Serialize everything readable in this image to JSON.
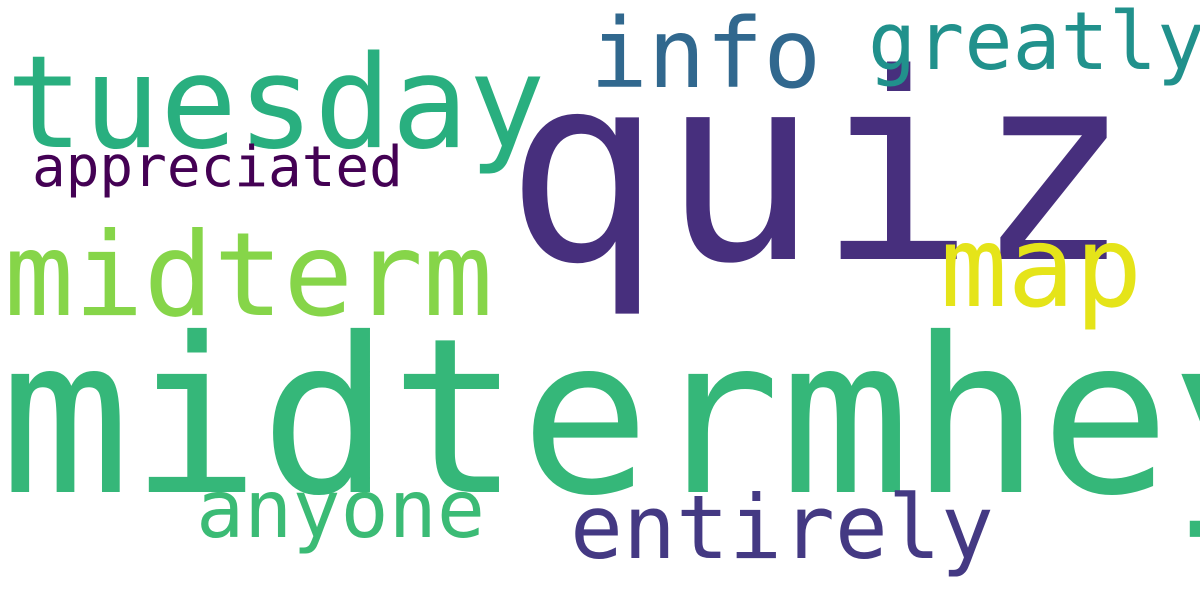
{
  "cloud": {
    "background": "#ffffff",
    "words": [
      {
        "id": "quiz",
        "text": "quiz",
        "color": "#472f7d"
      },
      {
        "id": "midtermhey",
        "text": "midtermhey",
        "color": "#35b779"
      },
      {
        "id": "tuesday",
        "text": "tuesday",
        "color": "#29af7f"
      },
      {
        "id": "midterm",
        "text": "midterm",
        "color": "#86d549"
      },
      {
        "id": "map",
        "text": "map",
        "color": "#e5e419"
      },
      {
        "id": "info",
        "text": "info",
        "color": "#31688e"
      },
      {
        "id": "greatly",
        "text": "greatly",
        "color": "#21918c"
      },
      {
        "id": "entirely",
        "text": "entirely",
        "color": "#443983"
      },
      {
        "id": "anyone",
        "text": "anyone",
        "color": "#3bbb75"
      },
      {
        "id": "appreciated",
        "text": "appreciated",
        "color": "#440154"
      }
    ]
  }
}
